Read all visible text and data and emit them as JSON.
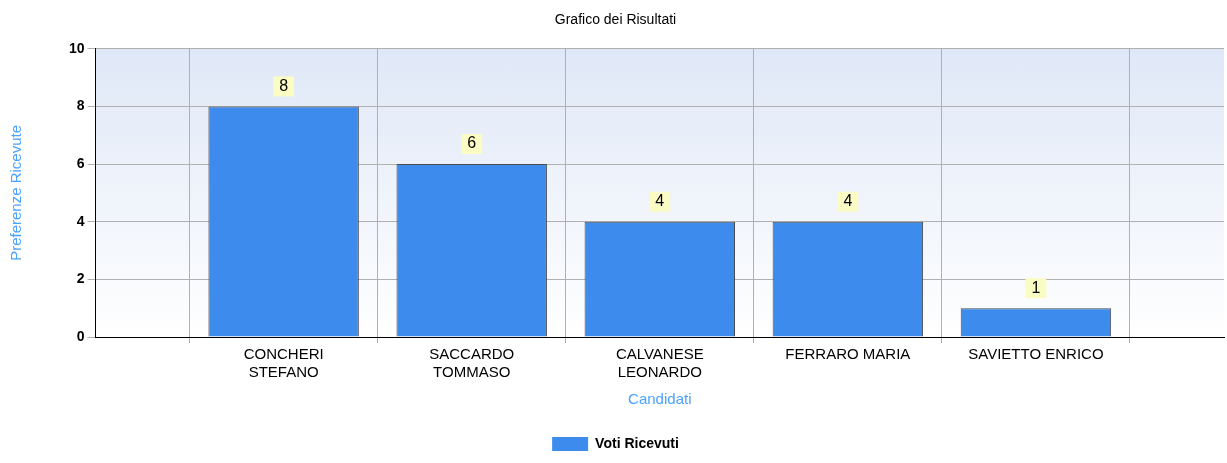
{
  "chart_data": {
    "type": "bar",
    "title": "Grafico dei Risultati",
    "xlabel": "Candidati",
    "ylabel": "Preferenze Ricevute",
    "categories": [
      "CONCHERI\nSTEFANO",
      "SACCARDO\nTOMMASO",
      "CALVANESE\nLEONARDO",
      "FERRARO MARIA",
      "SAVIETTO ENRICO"
    ],
    "series": [
      {
        "name": "Voti Ricevuti",
        "color": "#3d8bed",
        "values": [
          8,
          6,
          4,
          4,
          1
        ]
      }
    ],
    "ylim": [
      0,
      10
    ],
    "yticks": [
      0,
      2,
      4,
      6,
      8,
      10
    ],
    "grid": true,
    "legend": "bottom",
    "data_labels": true
  }
}
